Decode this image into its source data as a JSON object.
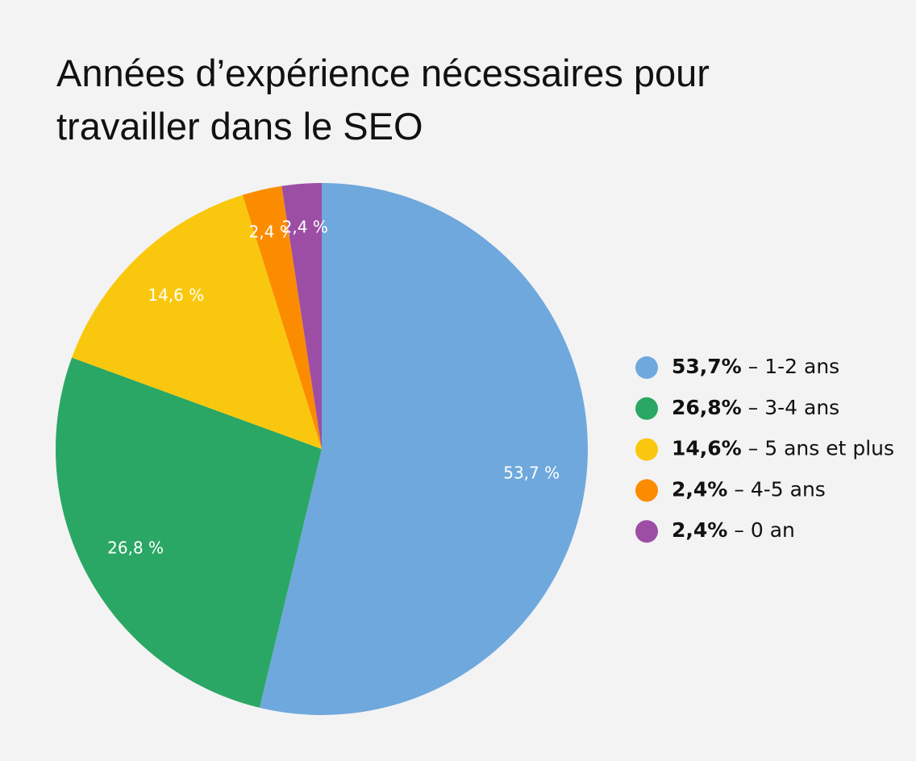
{
  "chart_data": {
    "type": "pie",
    "title": "Années d’expérience nécessaires pour travailler dans le SEO",
    "categories": [
      "1-2 ans",
      "3-4 ans",
      "5 ans et plus",
      "4-5 ans",
      "0 an"
    ],
    "values": [
      53.7,
      26.8,
      14.6,
      2.4,
      2.4
    ],
    "value_labels": [
      "53,7 %",
      "26,8 %",
      "14,6 %",
      "2,4 %",
      "2,4 %"
    ],
    "legend_value_labels": [
      "53,7%",
      "26,8%",
      "14,6%",
      "2,4%",
      "2,4%"
    ],
    "legend_separator": "–",
    "colors": [
      "#6fa8dc",
      "#2aa764",
      "#f9c80e",
      "#fb8c00",
      "#9c4ea5"
    ],
    "legend": "right"
  }
}
